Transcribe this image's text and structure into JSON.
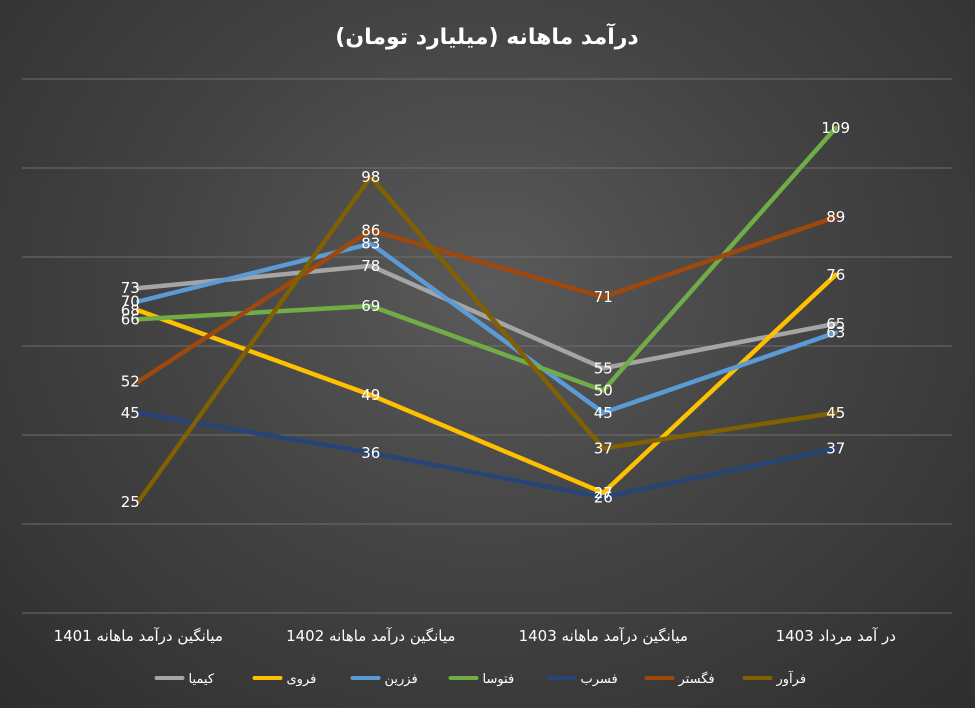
{
  "chart_data": {
    "type": "line",
    "title": "درآمد ماهانه (میلیارد تومان)",
    "categories": [
      "میانگین درآمد ماهانه 1401",
      "میانگین درآمد ماهانه 1402",
      "میانگین درآمد ماهانه 1403",
      "در آمد مرداد 1403"
    ],
    "ylim": [
      0,
      120
    ],
    "grid": true,
    "legend_position": "bottom",
    "series": [
      {
        "name": "کیمیا",
        "color": "#a5a5a5",
        "values": [
          73,
          78,
          55,
          65
        ]
      },
      {
        "name": "فروی",
        "color": "#ffc000",
        "values": [
          68,
          49,
          27,
          76
        ]
      },
      {
        "name": "فزرین",
        "color": "#5b9bd5",
        "values": [
          70,
          83,
          45,
          63
        ]
      },
      {
        "name": "فتوسا",
        "color": "#70ad47",
        "values": [
          66,
          69,
          50,
          109
        ]
      },
      {
        "name": "فسرب",
        "color": "#264478",
        "values": [
          45,
          36,
          26,
          37
        ]
      },
      {
        "name": "فگستر",
        "color": "#9e480e",
        "values": [
          52,
          86,
          71,
          89
        ]
      },
      {
        "name": "فرآور",
        "color": "#806000",
        "values": [
          25,
          98,
          37,
          45
        ]
      }
    ]
  }
}
